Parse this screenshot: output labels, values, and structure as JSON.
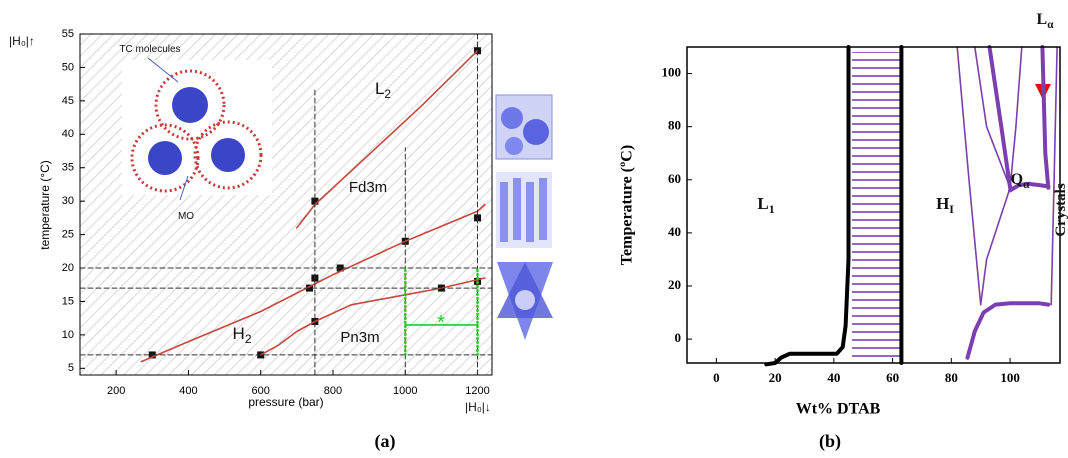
{
  "chart_data": [
    {
      "type": "line",
      "x_label": "pressure (bar)",
      "y_label": "temperature (°C)",
      "panel_label": "(a)",
      "xlim": [
        100,
        1240
      ],
      "ylim": [
        4,
        55
      ],
      "xticks": [
        200,
        400,
        600,
        800,
        1000,
        1200
      ],
      "yticks": [
        5,
        10,
        15,
        20,
        25,
        30,
        35,
        40,
        45,
        50,
        55
      ],
      "series": [
        {
          "style": "scatter",
          "color": "#111111",
          "x": [
            300,
            600,
            735,
            750,
            750,
            750,
            820,
            1000,
            1100,
            1200,
            1200,
            1200
          ],
          "values": [
            7,
            7,
            17,
            12,
            18.5,
            30,
            20,
            24,
            17,
            18,
            27.5,
            52.5
          ]
        },
        {
          "style": "solid",
          "color": "#c8463c",
          "x": [
            700,
            750,
            900,
            1050,
            1200
          ],
          "values": [
            26,
            29.5,
            37,
            44.5,
            52.5
          ]
        },
        {
          "style": "solid",
          "color": "#c8463c",
          "x": [
            270,
            400,
            600,
            800,
            1000,
            1200,
            1220
          ],
          "values": [
            6,
            9,
            13.5,
            19,
            24,
            28.5,
            29.5
          ]
        },
        {
          "style": "solid",
          "color": "#c8463c",
          "x": [
            600,
            650,
            700,
            750,
            850,
            1000,
            1100,
            1220
          ],
          "values": [
            7,
            8.5,
            10.5,
            12,
            14.5,
            16,
            17,
            18.5
          ]
        },
        {
          "style": "dashed",
          "color": "#333333",
          "x": [
            100,
            1240
          ],
          "values": [
            20,
            20
          ]
        },
        {
          "style": "dashed",
          "color": "#333333",
          "x": [
            100,
            1240
          ],
          "values": [
            17,
            17
          ]
        },
        {
          "style": "dashed",
          "color": "#333333",
          "x": [
            100,
            1240
          ],
          "values": [
            7,
            7
          ]
        },
        {
          "style": "dashed",
          "color": "#333333",
          "x": [
            750,
            750
          ],
          "values": [
            4,
            47
          ]
        },
        {
          "style": "dashed",
          "color": "#333333",
          "x": [
            1000,
            1000
          ],
          "values": [
            4,
            38
          ]
        },
        {
          "style": "dashed",
          "color": "#333333",
          "x": [
            1200,
            1200
          ],
          "values": [
            4,
            55
          ]
        },
        {
          "style": "dotted",
          "color": "#22cc22",
          "x": [
            1000,
            1000
          ],
          "values": [
            7,
            20
          ]
        },
        {
          "style": "dotted",
          "color": "#22cc22",
          "x": [
            1200,
            1200
          ],
          "values": [
            7,
            20
          ]
        },
        {
          "style": "solid",
          "color": "#22cc22",
          "x": [
            1000,
            1200
          ],
          "values": [
            11.5,
            11.5
          ]
        }
      ],
      "annotations": [
        {
          "text": "|H₀|↑"
        },
        {
          "text": "|H₀|↓"
        },
        {
          "text": "TC molecules"
        },
        {
          "text": "MO"
        },
        {
          "text": "L",
          "sub": "2"
        },
        {
          "text": "Fd3m"
        },
        {
          "text": "H",
          "sub": "2"
        },
        {
          "text": "Pn3m"
        },
        {
          "text": "*"
        }
      ]
    },
    {
      "type": "line",
      "x_label": "Wt% DTAB",
      "y_label": "Temperature (ºC)",
      "panel_label": "(b)",
      "xlim": [
        -10,
        117
      ],
      "ylim": [
        -9,
        110
      ],
      "xticks": [
        0,
        20,
        40,
        60,
        80,
        100
      ],
      "yticks": [
        0,
        20,
        40,
        60,
        80,
        100
      ],
      "series": [
        {
          "style": "thick",
          "color": "#000000",
          "x": [
            17,
            20,
            22,
            25,
            41,
            43,
            44,
            45,
            45
          ],
          "values": [
            -9.5,
            -9,
            -7,
            -5.5,
            -5.5,
            -3,
            5,
            30,
            110
          ]
        },
        {
          "style": "thick",
          "color": "#000000",
          "x": [
            63,
            63
          ],
          "values": [
            -9,
            110
          ]
        },
        {
          "style": "thick",
          "color": "#7b3fb0",
          "x": [
            85.5,
            88,
            91,
            95,
            100,
            105,
            110,
            113
          ],
          "values": [
            -7,
            3,
            10,
            13,
            13.5,
            13.5,
            13.5,
            13
          ]
        },
        {
          "style": "thick",
          "color": "#7b3fb0",
          "x": [
            100,
            103,
            106,
            110,
            113
          ],
          "values": [
            56,
            58,
            58.5,
            58,
            57.5
          ]
        },
        {
          "style": "solid",
          "color": "#7b3fb0",
          "x": [
            82,
            86,
            90
          ],
          "values": [
            110,
            60,
            13
          ]
        },
        {
          "style": "solid",
          "color": "#7b3fb0",
          "x": [
            88,
            92,
            100
          ],
          "values": [
            110,
            80,
            57
          ]
        },
        {
          "style": "thick",
          "color": "#7b3fb0",
          "x": [
            93,
            97,
            100
          ],
          "values": [
            110,
            80,
            57
          ]
        },
        {
          "style": "solid",
          "color": "#7b3fb0",
          "x": [
            104,
            102,
            100
          ],
          "values": [
            110,
            80,
            57
          ]
        },
        {
          "style": "thick",
          "color": "#7b3fb0",
          "x": [
            111,
            112,
            113
          ],
          "values": [
            110,
            70,
            57
          ]
        },
        {
          "style": "solid",
          "color": "#7b3fb0",
          "x": [
            116,
            115,
            114
          ],
          "values": [
            110,
            60,
            13
          ]
        },
        {
          "style": "solid",
          "color": "#7b3fb0",
          "x": [
            100,
            92,
            90
          ],
          "values": [
            57,
            30,
            13
          ]
        }
      ],
      "annotations": [
        {
          "text": "L",
          "sub": "1"
        },
        {
          "text": "H",
          "sub": "I"
        },
        {
          "text": "Q",
          "sub": "α"
        },
        {
          "text": "L",
          "sub": "α"
        },
        {
          "text": "Crystals"
        }
      ]
    }
  ]
}
